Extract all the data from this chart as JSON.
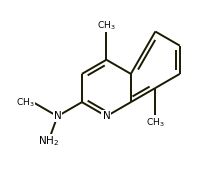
{
  "bg_color": "#ffffff",
  "bond_color": "#1a1a00",
  "text_color": "#000000",
  "lw": 1.4,
  "figsize": [
    2.14,
    1.73
  ],
  "dpi": 100,
  "font_size_atom": 7.5,
  "font_size_sub": 6.5
}
